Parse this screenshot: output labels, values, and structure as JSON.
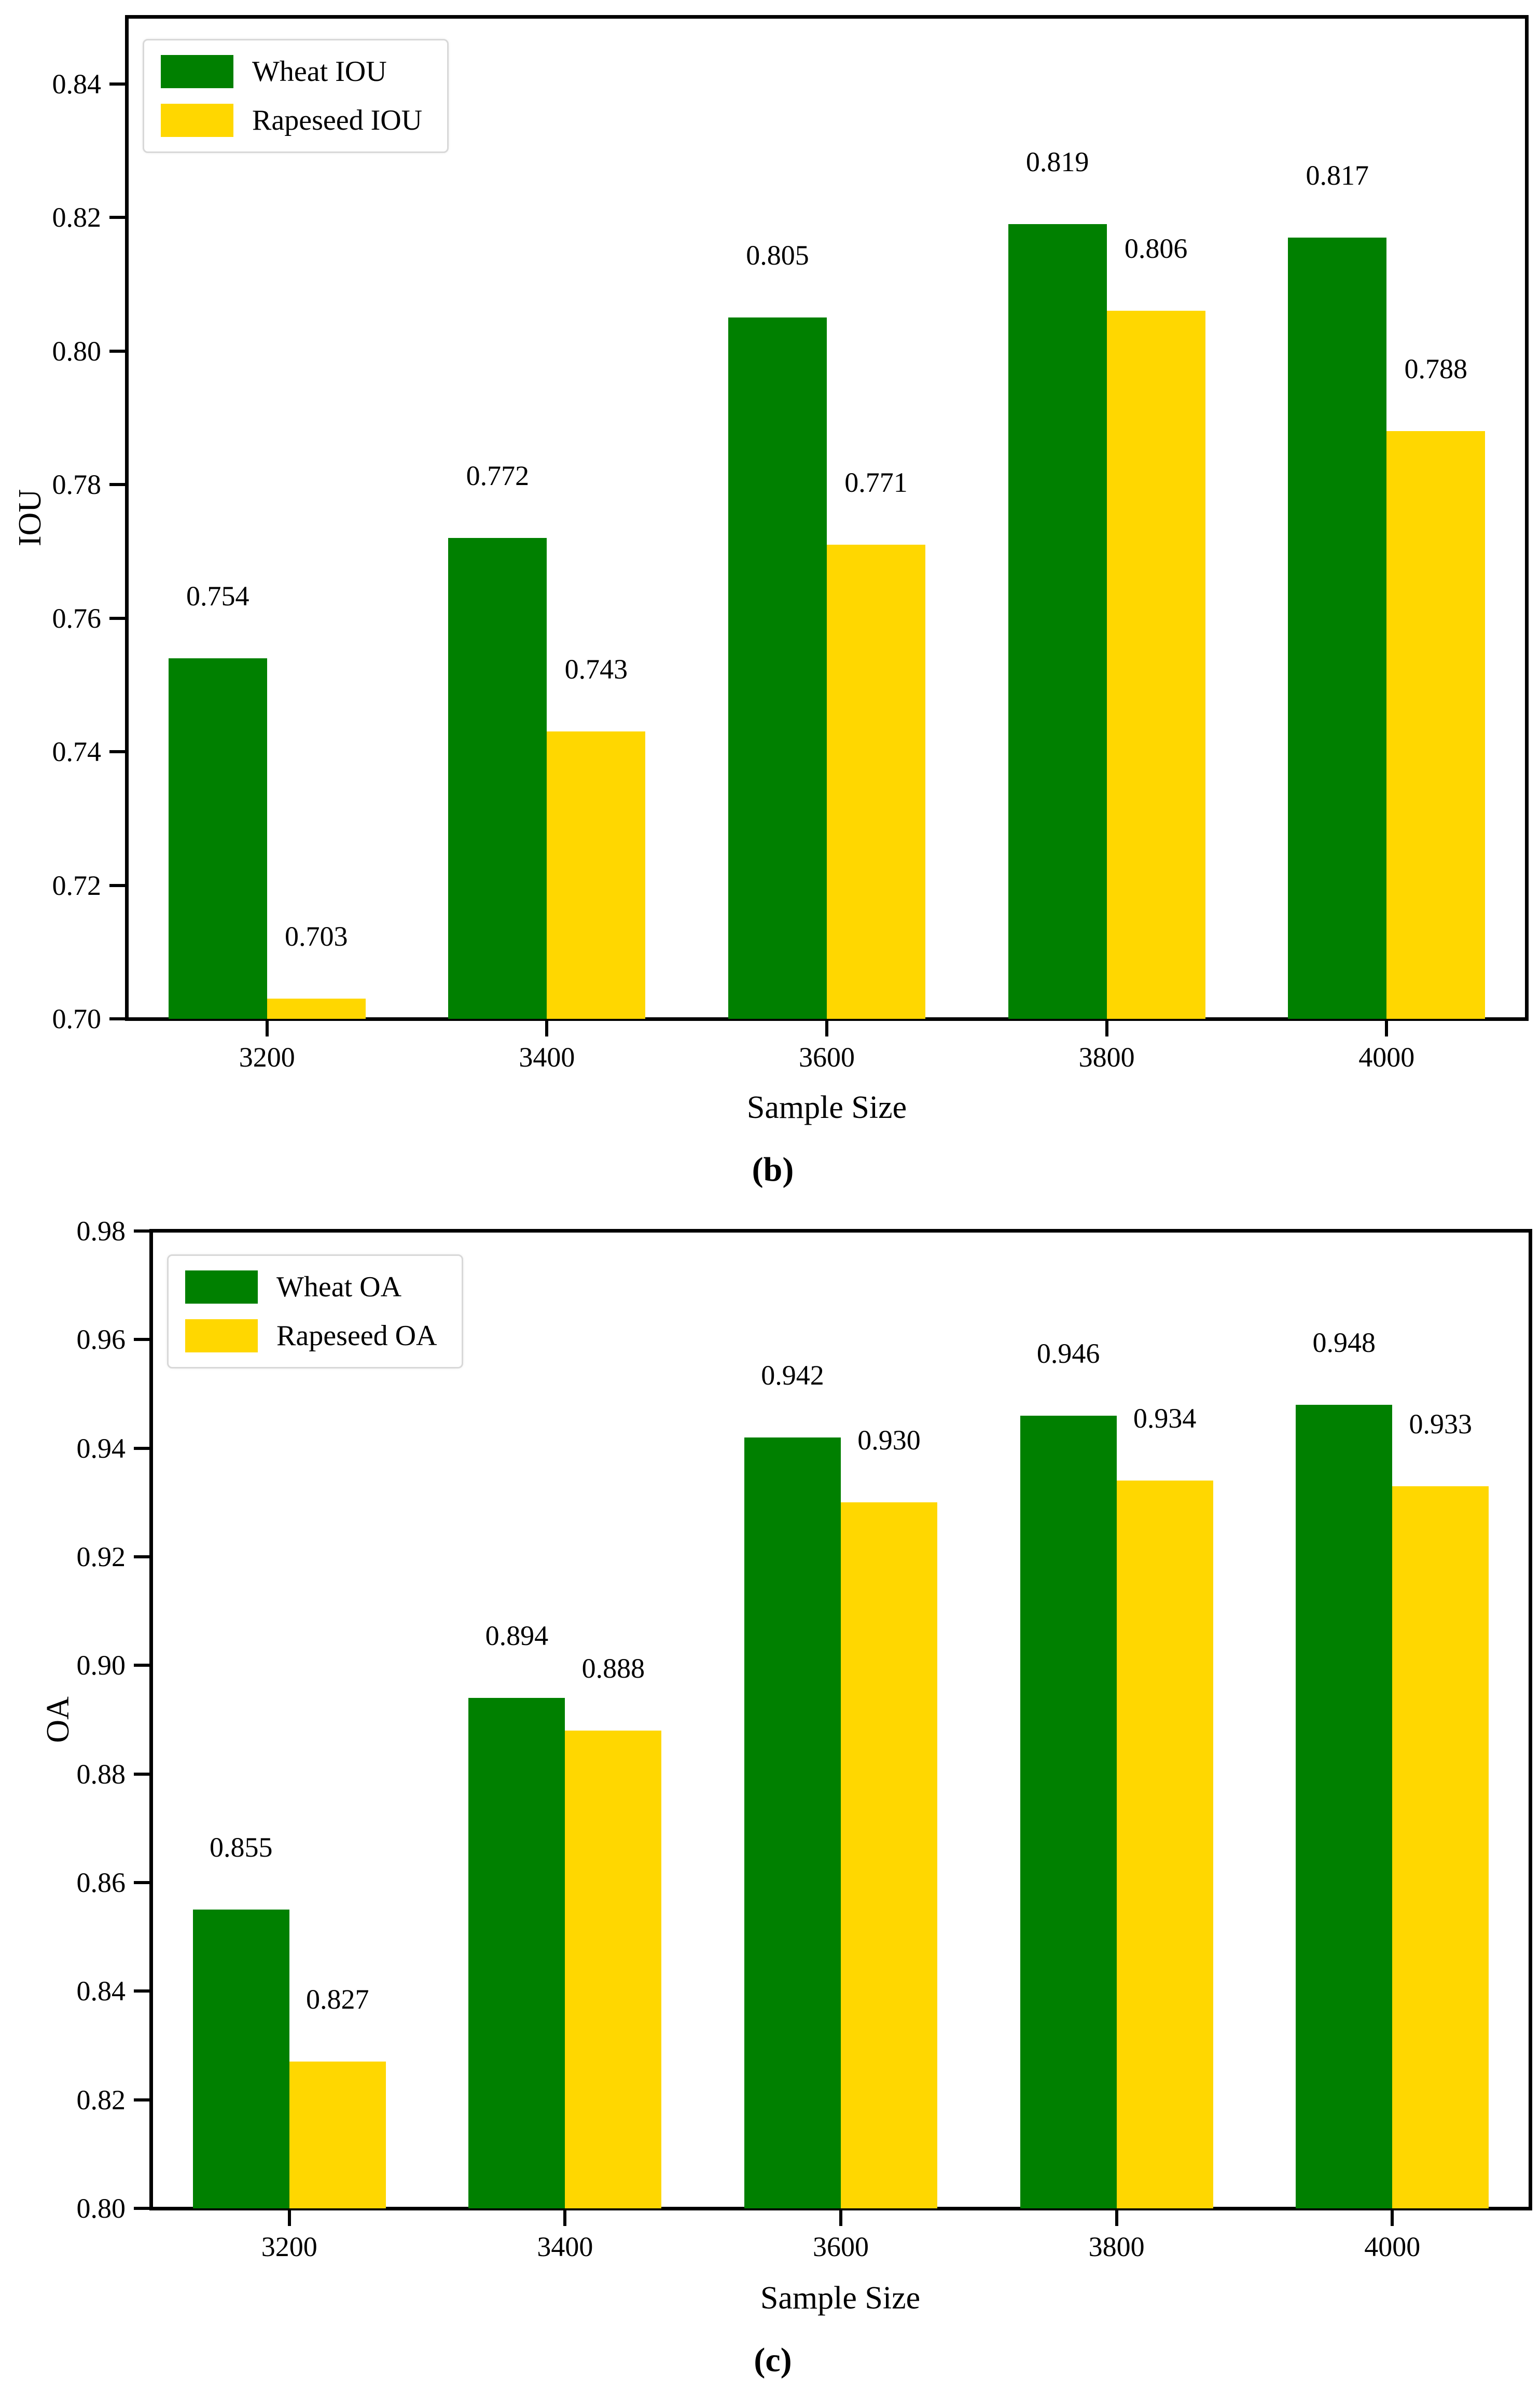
{
  "page": {
    "background": "#ffffff"
  },
  "colors": {
    "wheat": "#008000",
    "rapeseed": "#FFD700",
    "axis": "#000000",
    "legend_border": "#d8d8d8"
  },
  "chart_data": [
    {
      "id": "b",
      "type": "bar",
      "caption": "(b)",
      "xlabel": "Sample Size",
      "ylabel": "IOU",
      "categories": [
        "3200",
        "3400",
        "3600",
        "3800",
        "4000"
      ],
      "series": [
        {
          "name": "Wheat IOU",
          "color_key": "wheat",
          "values": [
            0.754,
            0.772,
            0.805,
            0.819,
            0.817
          ],
          "labels": [
            "0.754",
            "0.772",
            "0.805",
            "0.819",
            "0.817"
          ]
        },
        {
          "name": "Rapeseed IOU",
          "color_key": "rapeseed",
          "values": [
            0.703,
            0.743,
            0.771,
            0.806,
            0.788
          ],
          "labels": [
            "0.703",
            "0.743",
            "0.771",
            "0.806",
            "0.788"
          ]
        }
      ],
      "ylim": [
        0.7,
        0.85
      ],
      "yticks": [
        {
          "value": 0.84,
          "label": "0.84"
        },
        {
          "value": 0.82,
          "label": "0.82"
        },
        {
          "value": 0.8,
          "label": "0.80"
        },
        {
          "value": 0.78,
          "label": "0.78"
        },
        {
          "value": 0.76,
          "label": "0.76"
        },
        {
          "value": 0.74,
          "label": "0.74"
        },
        {
          "value": 0.72,
          "label": "0.72"
        },
        {
          "value": 0.7,
          "label": "0.70"
        }
      ],
      "legend_position": "upper left",
      "grid": false
    },
    {
      "id": "c",
      "type": "bar",
      "caption": "(c)",
      "xlabel": "Sample Size",
      "ylabel": "OA",
      "categories": [
        "3200",
        "3400",
        "3600",
        "3800",
        "4000"
      ],
      "series": [
        {
          "name": "Wheat OA",
          "color_key": "wheat",
          "values": [
            0.855,
            0.894,
            0.942,
            0.946,
            0.948
          ],
          "labels": [
            "0.855",
            "0.894",
            "0.942",
            "0.946",
            "0.948"
          ]
        },
        {
          "name": "Rapeseed OA",
          "color_key": "rapeseed",
          "values": [
            0.827,
            0.888,
            0.93,
            0.934,
            0.933
          ],
          "labels": [
            "0.827",
            "0.888",
            "0.930",
            "0.934",
            "0.933"
          ]
        }
      ],
      "ylim": [
        0.8,
        0.98
      ],
      "yticks": [
        {
          "value": 0.98,
          "label": "0.98"
        },
        {
          "value": 0.96,
          "label": "0.96"
        },
        {
          "value": 0.94,
          "label": "0.94"
        },
        {
          "value": 0.92,
          "label": "0.92"
        },
        {
          "value": 0.9,
          "label": "0.90"
        },
        {
          "value": 0.88,
          "label": "0.88"
        },
        {
          "value": 0.86,
          "label": "0.86"
        },
        {
          "value": 0.84,
          "label": "0.84"
        },
        {
          "value": 0.82,
          "label": "0.82"
        },
        {
          "value": 0.8,
          "label": "0.80"
        }
      ],
      "legend_position": "upper left",
      "grid": false
    }
  ]
}
